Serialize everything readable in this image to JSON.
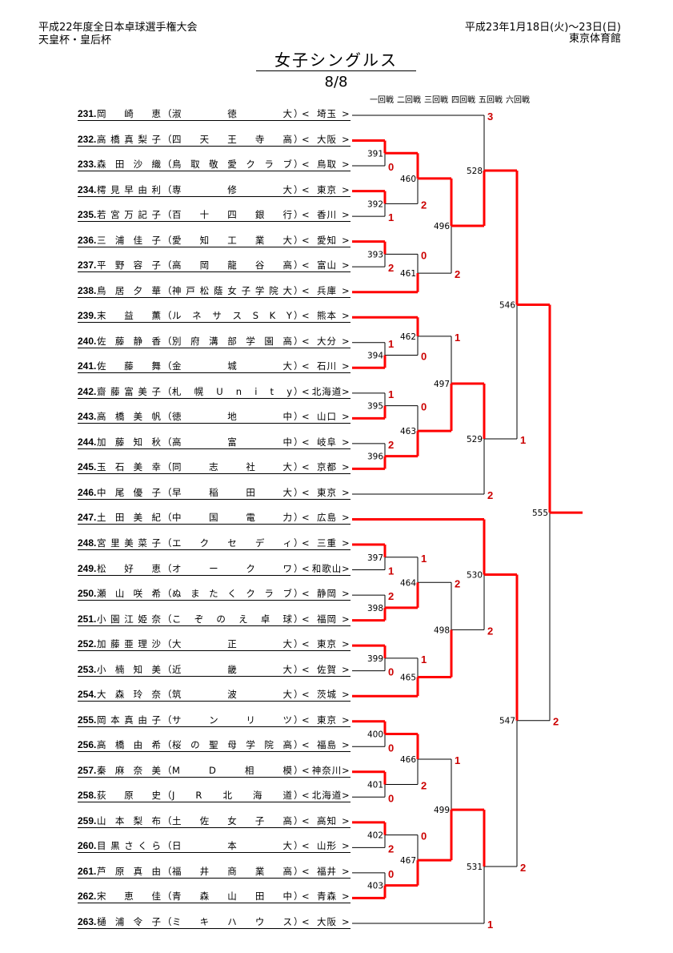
{
  "header": {
    "event": "平成22年度全日本卓球選手権大会",
    "cups": "天皇杯・皇后杯",
    "dates": "平成23年1月18日(火)～23日(日)",
    "venue": "東京体育館",
    "title": "女子シングルス",
    "page": "8/8",
    "rounds": [
      "一回戦",
      "二回戦",
      "三回戦",
      "四回戦",
      "五回戦",
      "六回戦"
    ]
  },
  "players": [
    {
      "no": "231.",
      "name": "岡崎恵",
      "school": "淑徳大",
      "pref": "埼玉"
    },
    {
      "no": "232.",
      "name": "高橋真梨子",
      "school": "四天王寺高",
      "pref": "大阪"
    },
    {
      "no": "233.",
      "name": "森田沙織",
      "school": "鳥取敬愛クラブ",
      "pref": "鳥取"
    },
    {
      "no": "234.",
      "name": "樗見早由利",
      "school": "専修大",
      "pref": "東京"
    },
    {
      "no": "235.",
      "name": "若宮万記子",
      "school": "百十四銀行",
      "pref": "香川"
    },
    {
      "no": "236.",
      "name": "三浦佳子",
      "school": "愛知工業大",
      "pref": "愛知"
    },
    {
      "no": "237.",
      "name": "平野容子",
      "school": "高岡龍谷高",
      "pref": "富山"
    },
    {
      "no": "238.",
      "name": "鳥居夕華",
      "school": "神戸松蔭女子学院大",
      "pref": "兵庫"
    },
    {
      "no": "239.",
      "name": "末益薫",
      "school": "ルネサスSKY",
      "pref": "熊本"
    },
    {
      "no": "240.",
      "name": "佐藤静香",
      "school": "別府溝部学園高",
      "pref": "大分"
    },
    {
      "no": "241.",
      "name": "佐藤舞",
      "school": "金城大",
      "pref": "石川"
    },
    {
      "no": "242.",
      "name": "齋藤富美子",
      "school": "札幌Unity",
      "pref": "北海道"
    },
    {
      "no": "243.",
      "name": "高橋美帆",
      "school": "徳地中",
      "pref": "山口"
    },
    {
      "no": "244.",
      "name": "加藤知秋",
      "school": "高富中",
      "pref": "岐阜"
    },
    {
      "no": "245.",
      "name": "玉石美幸",
      "school": "同志社大",
      "pref": "京都"
    },
    {
      "no": "246.",
      "name": "中尾優子",
      "school": "早稲田大",
      "pref": "東京"
    },
    {
      "no": "247.",
      "name": "土田美紀",
      "school": "中国電力",
      "pref": "広島"
    },
    {
      "no": "248.",
      "name": "宮里美菜子",
      "school": "エクセディ",
      "pref": "三重"
    },
    {
      "no": "249.",
      "name": "松好恵",
      "school": "オークワ",
      "pref": "和歌山"
    },
    {
      "no": "250.",
      "name": "瀬山咲希",
      "school": "ぬまたくクラブ",
      "pref": "静岡"
    },
    {
      "no": "251.",
      "name": "小園江姫奈",
      "school": "こぞのえ卓球",
      "pref": "福岡"
    },
    {
      "no": "252.",
      "name": "加藤亜理沙",
      "school": "大正大",
      "pref": "東京"
    },
    {
      "no": "253.",
      "name": "小楠知美",
      "school": "近畿大",
      "pref": "佐賀"
    },
    {
      "no": "254.",
      "name": "大森玲奈",
      "school": "筑波大",
      "pref": "茨城"
    },
    {
      "no": "255.",
      "name": "岡本真由子",
      "school": "サンリツ",
      "pref": "東京"
    },
    {
      "no": "256.",
      "name": "高橋由希",
      "school": "桜の聖母学院高",
      "pref": "福島"
    },
    {
      "no": "257.",
      "name": "秦麻奈美",
      "school": "MD相模",
      "pref": "神奈川"
    },
    {
      "no": "258.",
      "name": "荻原史",
      "school": "JR北海道",
      "pref": "北海道"
    },
    {
      "no": "259.",
      "name": "山本梨布",
      "school": "土佐女子高",
      "pref": "高知"
    },
    {
      "no": "260.",
      "name": "目黒さくら",
      "school": "日本大",
      "pref": "山形"
    },
    {
      "no": "261.",
      "name": "芦原真由",
      "school": "福井商業高",
      "pref": "福井"
    },
    {
      "no": "262.",
      "name": "宋恵佳",
      "school": "青森山田中",
      "pref": "青森"
    },
    {
      "no": "263.",
      "name": "樋浦令子",
      "school": "ミキハウス",
      "pref": "大阪"
    }
  ],
  "bracket_colors": {
    "win": "#ff0000",
    "line": "#000000",
    "score": "#cc0000"
  },
  "matches": [
    {
      "id": "391",
      "round": 1,
      "children": [
        "p231",
        "p232"
      ],
      "winner": 0,
      "score": "0",
      "ref": [
        1,
        2
      ]
    },
    {
      "id": "392",
      "round": 1,
      "children": [
        "p234",
        "p235"
      ],
      "winner": 0,
      "score": "1"
    },
    {
      "id": "393",
      "round": 1,
      "children": [
        "p236",
        "p237"
      ],
      "winner": 0,
      "score": "2"
    },
    {
      "id": "394",
      "round": 1,
      "children": [
        "p240",
        "p241"
      ],
      "winner": 1,
      "score": "1"
    },
    {
      "id": "395",
      "round": 1,
      "children": [
        "p242",
        "p243"
      ],
      "winner": 1,
      "score": "1"
    },
    {
      "id": "396",
      "round": 1,
      "children": [
        "p244",
        "p245"
      ],
      "winner": 1,
      "score": "2"
    },
    {
      "id": "397",
      "round": 1,
      "children": [
        "p248",
        "p249"
      ],
      "winner": 0,
      "score": "1"
    },
    {
      "id": "398",
      "round": 1,
      "children": [
        "p250",
        "p251"
      ],
      "winner": 1,
      "score": "2"
    },
    {
      "id": "399",
      "round": 1,
      "children": [
        "p252",
        "p253"
      ],
      "winner": 0,
      "score": "0"
    },
    {
      "id": "400",
      "round": 1,
      "children": [
        "p255",
        "p256"
      ],
      "winner": 0,
      "score": "0"
    },
    {
      "id": "401",
      "round": 1,
      "children": [
        "p257",
        "p258"
      ],
      "winner": 0,
      "score": "0"
    },
    {
      "id": "402",
      "round": 1,
      "children": [
        "p259",
        "p260"
      ],
      "winner": 0,
      "score": "2"
    },
    {
      "id": "403",
      "round": 1,
      "children": [
        "p261",
        "p262"
      ],
      "winner": 1,
      "score": "0"
    },
    {
      "id": "460",
      "round": 2,
      "children": [
        "m391",
        "m392"
      ],
      "winner": 0,
      "score": "2"
    },
    {
      "id": "461",
      "round": 2,
      "children": [
        "m393",
        "p238"
      ],
      "winner": 1,
      "score": "0"
    },
    {
      "id": "462",
      "round": 2,
      "children": [
        "p239",
        "m394"
      ],
      "winner": 0,
      "score": "0"
    },
    {
      "id": "463",
      "round": 2,
      "children": [
        "m395",
        "m396"
      ],
      "winner": 1,
      "score": "0"
    },
    {
      "id": "464",
      "round": 2,
      "children": [
        "m397",
        "m398"
      ],
      "winner": 1,
      "score": "1"
    },
    {
      "id": "465",
      "round": 2,
      "children": [
        "m399",
        "p254"
      ],
      "winner": 1,
      "score": "1"
    },
    {
      "id": "466",
      "round": 2,
      "children": [
        "m400",
        "m401"
      ],
      "winner": 0,
      "score": "2"
    },
    {
      "id": "467",
      "round": 2,
      "children": [
        "m402",
        "m403"
      ],
      "winner": 1,
      "score": "0"
    },
    {
      "id": "496",
      "round": 3,
      "children": [
        "m460",
        "m461"
      ],
      "winner": 0,
      "score": "2"
    },
    {
      "id": "497",
      "round": 3,
      "children": [
        "m462",
        "m463"
      ],
      "winner": 1,
      "score": "1"
    },
    {
      "id": "498",
      "round": 3,
      "children": [
        "m464",
        "m465"
      ],
      "winner": 1,
      "score": "2"
    },
    {
      "id": "499",
      "round": 3,
      "children": [
        "m466",
        "m467"
      ],
      "winner": 1,
      "score": "1"
    },
    {
      "id": "528",
      "round": 4,
      "children": [
        "p231",
        "m496"
      ],
      "winner": 1,
      "score": "3"
    },
    {
      "id": "529",
      "round": 4,
      "children": [
        "m497",
        "p246"
      ],
      "winner": 0,
      "score": "2"
    },
    {
      "id": "530",
      "round": 4,
      "children": [
        "p247",
        "m498"
      ],
      "winner": 0,
      "score": "2"
    },
    {
      "id": "531",
      "round": 4,
      "children": [
        "m499",
        "p263"
      ],
      "winner": 0,
      "score": "1"
    },
    {
      "id": "546",
      "round": 5,
      "children": [
        "m528",
        "m529"
      ],
      "winner": 0,
      "score": "1"
    },
    {
      "id": "547",
      "round": 5,
      "children": [
        "m530",
        "m531"
      ],
      "winner": 0,
      "score": "2"
    },
    {
      "id": "555",
      "round": 6,
      "children": [
        "m546",
        "m547"
      ],
      "winner": 0,
      "score": "2"
    }
  ]
}
